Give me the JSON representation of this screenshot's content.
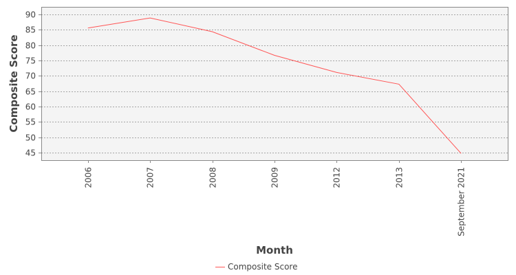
{
  "chart_data": {
    "type": "line",
    "title": "",
    "xlabel": "Month",
    "ylabel": "Composite Score",
    "categories": [
      "2006",
      "2007",
      "2008",
      "2009",
      "2012",
      "2013",
      "September 2021"
    ],
    "yticks": [
      "45",
      "50",
      "55",
      "60",
      "65",
      "70",
      "75",
      "80",
      "85",
      "90"
    ],
    "ylim": [
      42.5,
      92.5
    ],
    "grid": true,
    "legend_position": "bottom",
    "series": [
      {
        "name": "Composite Score",
        "color": "#ff5555",
        "values": [
          85.6,
          88.9,
          84.4,
          76.7,
          71.1,
          67.3,
          44.7
        ]
      }
    ]
  }
}
